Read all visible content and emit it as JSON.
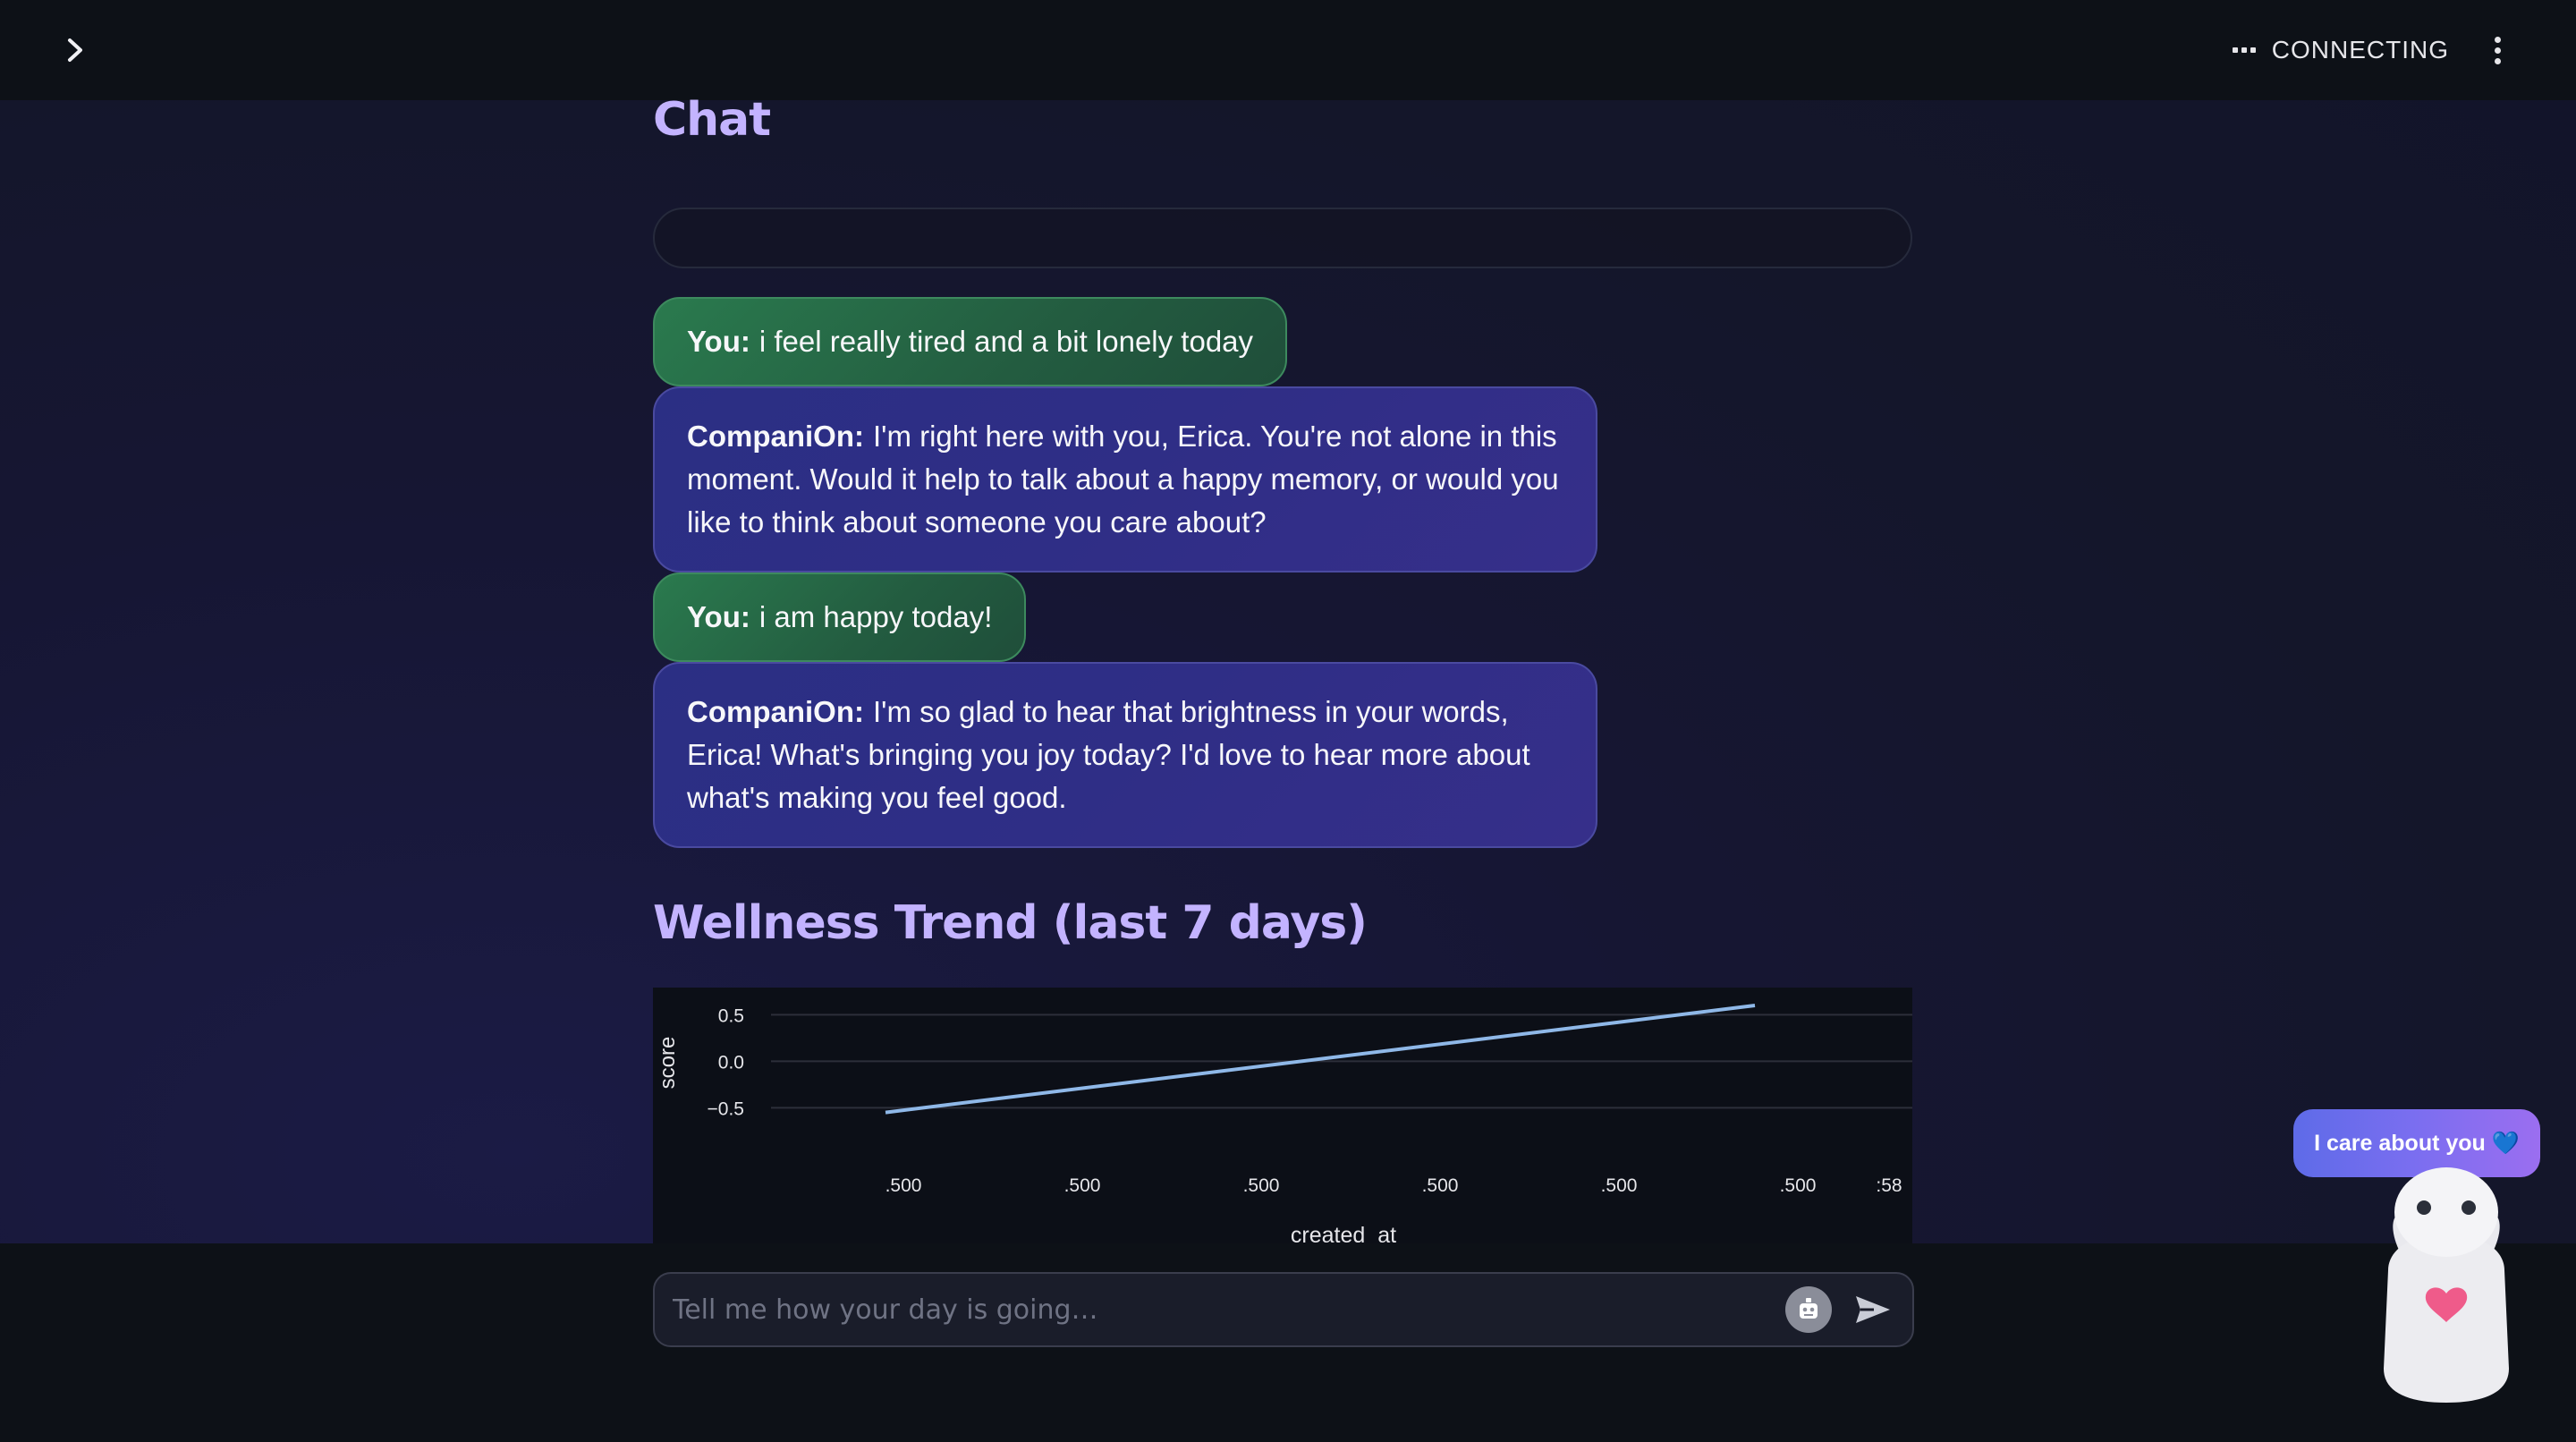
{
  "header": {
    "status_label": "CONNECTING",
    "sidebar_toggle_icon": "chevron-right-icon",
    "menu_icon": "kebab-menu-icon"
  },
  "chat": {
    "title": "Chat",
    "messages": [
      {
        "speaker": "You:",
        "text": "i feel really tired and a bit lonely today",
        "role": "user"
      },
      {
        "speaker": "CompaniOn:",
        "text": "I'm right here with you, Erica. You're not alone in this moment. Would it help to talk about a happy memory, or would you like to think about someone you care about?",
        "role": "bot"
      },
      {
        "speaker": "You:",
        "text": "i am happy today!",
        "role": "user"
      },
      {
        "speaker": "CompaniOn:",
        "text": "I'm so glad to hear that brightness in your words, Erica! What's bringing you joy today? I'd love to hear more about what's making you feel good.",
        "role": "bot"
      }
    ]
  },
  "trend": {
    "title": "Wellness Trend (last 7 days)"
  },
  "chart_data": {
    "type": "line",
    "title": "",
    "xlabel": "created_at",
    "ylabel": "score",
    "x_tick_labels": [
      ".500",
      ".500",
      ".500",
      ".500",
      ".500",
      ".500",
      ":58"
    ],
    "y_ticks": [
      0.5,
      0.0,
      -0.5
    ],
    "y_tick_labels": [
      "0.5",
      "0.0",
      "−0.5"
    ],
    "ylim": [
      -0.65,
      0.6
    ],
    "series": [
      {
        "values": [
          {
            "x": 0,
            "y": -0.55
          },
          {
            "x": 1,
            "y": 0.6
          }
        ],
        "color": "#8fb8e8"
      }
    ],
    "grid": true
  },
  "input": {
    "placeholder": "Tell me how your day is going…",
    "robot_icon": "robot-icon",
    "send_icon": "send-icon"
  },
  "mascot": {
    "bubble_text": "I care about you 💙",
    "heart_color": "#ef5b8a"
  }
}
